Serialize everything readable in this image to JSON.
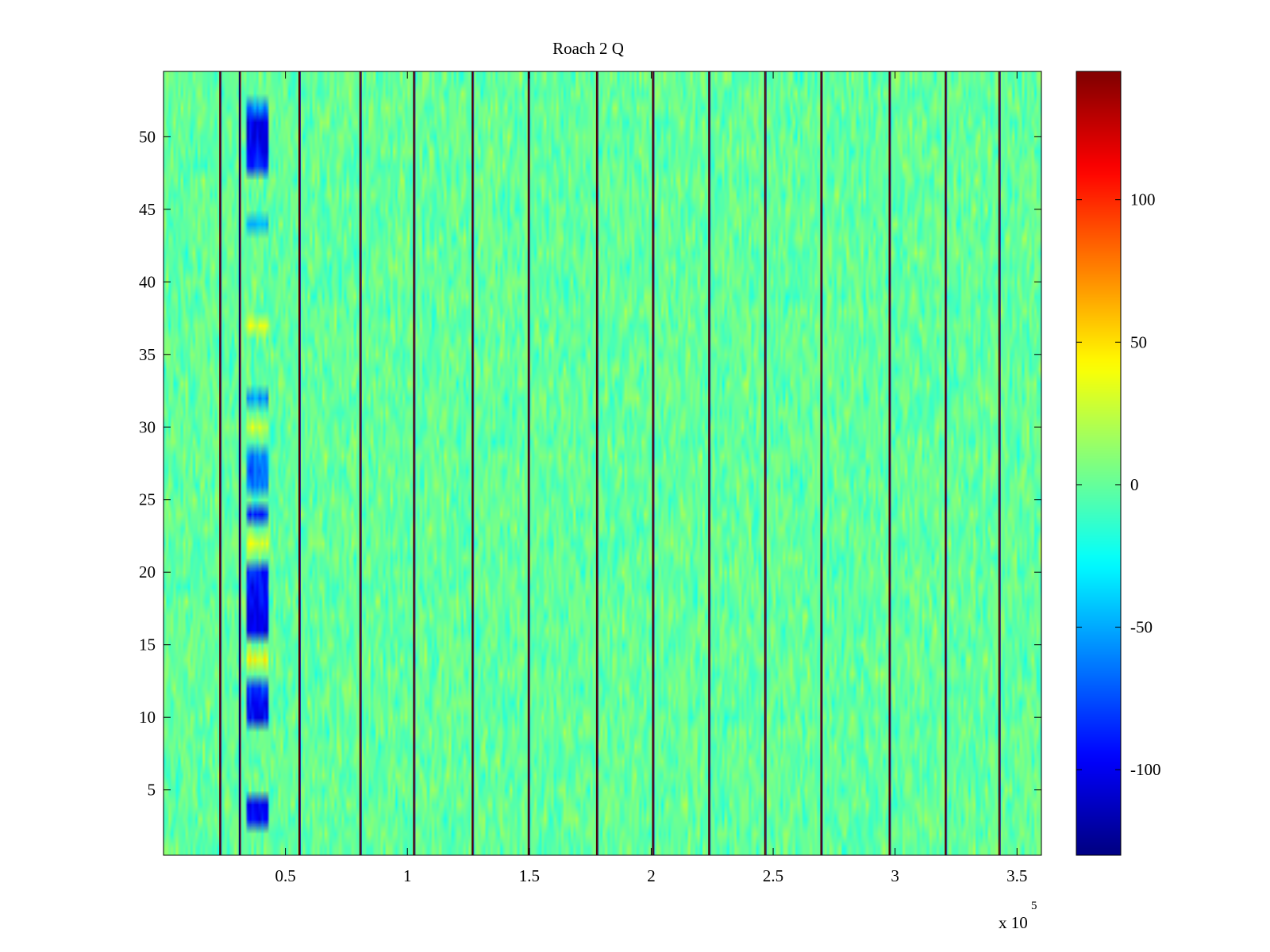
{
  "chart_data": {
    "type": "heatmap",
    "title": "Roach 2 Q",
    "xlabel": "",
    "ylabel": "",
    "x_exponent_label": "x 10",
    "x_exponent_power": "5",
    "xlim": [
      0.5,
      360000
    ],
    "ylim": [
      0.5,
      54.5
    ],
    "rows": 54,
    "columns": 360,
    "x_ticks": [
      50000,
      100000,
      150000,
      200000,
      250000,
      300000,
      350000
    ],
    "x_tick_labels": [
      "0.5",
      "1",
      "1.5",
      "2",
      "2.5",
      "3",
      "3.5"
    ],
    "y_ticks": [
      5,
      10,
      15,
      20,
      25,
      30,
      35,
      40,
      45,
      50
    ],
    "y_tick_labels": [
      "5",
      "10",
      "15",
      "20",
      "25",
      "30",
      "35",
      "40",
      "45",
      "50"
    ],
    "colorbar": {
      "colormap": "jet",
      "range": [
        -130,
        145
      ],
      "ticks": [
        -100,
        -50,
        0,
        50,
        100
      ],
      "tick_labels": [
        "-100",
        "-50",
        "0",
        "50",
        "100"
      ]
    },
    "background_value_range": [
      -25,
      25
    ],
    "vertical_stripes": [
      {
        "x": 23500,
        "value": 140
      },
      {
        "x": 31500,
        "value": -120
      },
      {
        "x": 56000,
        "value": 140
      },
      {
        "x": 81000,
        "value": 140
      },
      {
        "x": 103000,
        "value": 140
      },
      {
        "x": 127000,
        "value": 140
      },
      {
        "x": 150000,
        "value": 140
      },
      {
        "x": 178000,
        "value": 140
      },
      {
        "x": 201000,
        "value": 140
      },
      {
        "x": 224000,
        "value": 140
      },
      {
        "x": 247000,
        "value": 140
      },
      {
        "x": 270000,
        "value": 140
      },
      {
        "x": 298000,
        "value": 140
      },
      {
        "x": 321000,
        "value": 140
      },
      {
        "x": 343000,
        "value": 140
      }
    ],
    "anomaly_band": {
      "x_range": [
        34000,
        43000
      ],
      "rows": [
        {
          "row": 3,
          "value": -95
        },
        {
          "row": 4,
          "value": -95
        },
        {
          "row": 10,
          "value": -95
        },
        {
          "row": 11,
          "value": -95
        },
        {
          "row": 12,
          "value": -80
        },
        {
          "row": 14,
          "value": 40
        },
        {
          "row": 16,
          "value": -100
        },
        {
          "row": 17,
          "value": -100
        },
        {
          "row": 18,
          "value": -95
        },
        {
          "row": 19,
          "value": -95
        },
        {
          "row": 20,
          "value": -90
        },
        {
          "row": 22,
          "value": 30
        },
        {
          "row": 24,
          "value": -85
        },
        {
          "row": 26,
          "value": -65
        },
        {
          "row": 27,
          "value": -70
        },
        {
          "row": 28,
          "value": -60
        },
        {
          "row": 30,
          "value": 30
        },
        {
          "row": 32,
          "value": -55
        },
        {
          "row": 37,
          "value": 30
        },
        {
          "row": 44,
          "value": -50
        },
        {
          "row": 48,
          "value": -85
        },
        {
          "row": 49,
          "value": -95
        },
        {
          "row": 50,
          "value": -100
        },
        {
          "row": 51,
          "value": -100
        },
        {
          "row": 52,
          "value": -60
        }
      ]
    }
  }
}
